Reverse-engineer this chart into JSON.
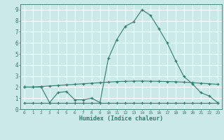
{
  "line_peak_x": [
    0,
    1,
    2,
    3,
    4,
    5,
    6,
    7,
    8,
    9,
    10,
    11,
    12,
    13,
    14,
    15,
    16,
    17,
    18,
    19,
    20,
    21,
    22,
    23
  ],
  "line_peak_y": [
    2.0,
    2.0,
    2.0,
    0.6,
    1.5,
    1.6,
    0.85,
    0.85,
    1.0,
    0.6,
    4.6,
    6.3,
    7.5,
    7.9,
    9.0,
    8.5,
    7.3,
    6.0,
    4.4,
    2.95,
    2.3,
    1.5,
    1.2,
    0.6
  ],
  "line_mid_x": [
    0,
    1,
    2,
    3,
    4,
    5,
    6,
    7,
    8,
    9,
    10,
    11,
    12,
    13,
    14,
    15,
    16,
    17,
    18,
    19,
    20,
    21,
    22,
    23
  ],
  "line_mid_y": [
    2.0,
    2.0,
    2.05,
    2.1,
    2.15,
    2.2,
    2.25,
    2.3,
    2.35,
    2.4,
    2.45,
    2.5,
    2.52,
    2.54,
    2.55,
    2.53,
    2.52,
    2.5,
    2.48,
    2.45,
    2.4,
    2.35,
    2.3,
    2.25
  ],
  "line_flat_x": [
    0,
    1,
    2,
    3,
    4,
    5,
    6,
    7,
    8,
    9,
    10,
    11,
    12,
    13,
    14,
    15,
    16,
    17,
    18,
    19,
    20,
    21,
    22,
    23
  ],
  "line_flat_y": [
    0.6,
    0.6,
    0.6,
    0.6,
    0.6,
    0.6,
    0.6,
    0.6,
    0.6,
    0.6,
    0.6,
    0.6,
    0.6,
    0.6,
    0.6,
    0.6,
    0.6,
    0.6,
    0.6,
    0.6,
    0.6,
    0.6,
    0.6,
    0.6
  ],
  "background_color": "#cce9e9",
  "grid_color": "#ffffff",
  "line_color": "#2e7d6e",
  "xlabel": "Humidex (Indice chaleur)",
  "ylim": [
    0,
    9.5
  ],
  "xlim": [
    -0.5,
    23.5
  ],
  "yticks": [
    0,
    1,
    2,
    3,
    4,
    5,
    6,
    7,
    8,
    9
  ],
  "xticks": [
    0,
    1,
    2,
    3,
    4,
    5,
    6,
    7,
    8,
    9,
    10,
    11,
    12,
    13,
    14,
    15,
    16,
    17,
    18,
    19,
    20,
    21,
    22,
    23
  ]
}
